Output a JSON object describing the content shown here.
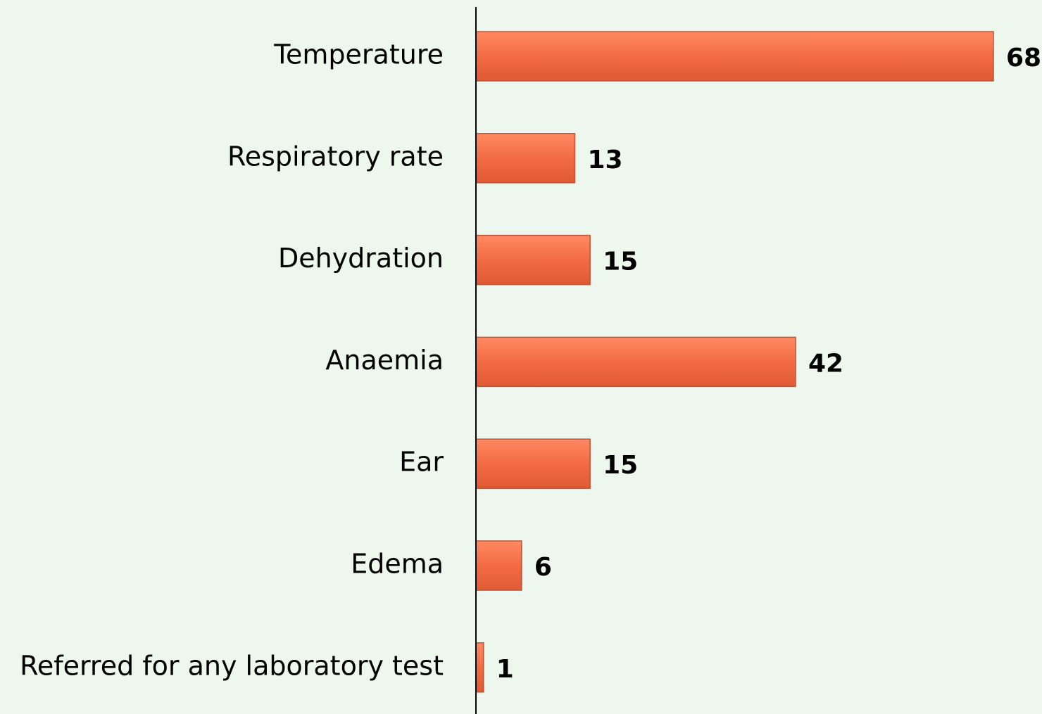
{
  "chart_data": {
    "type": "barh",
    "categories": [
      "Temperature",
      "Respiratory rate",
      "Dehydration",
      "Anaemia",
      "Ear",
      "Edema",
      "Referred for any laboratory test"
    ],
    "values": [
      68,
      13,
      15,
      42,
      15,
      6,
      1
    ],
    "color": "#f26b43"
  }
}
